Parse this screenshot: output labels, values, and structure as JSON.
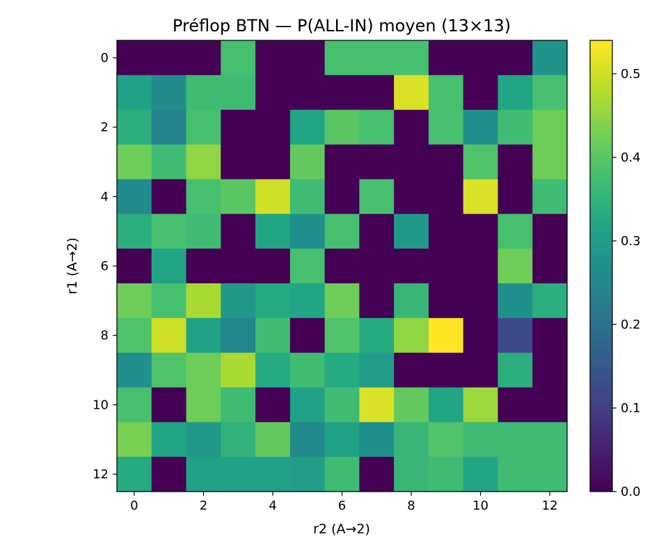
{
  "chart_data": {
    "type": "heatmap",
    "title": "Préflop BTN — P(ALL-IN) moyen (13×13)",
    "xlabel": "r2 (A→2)",
    "ylabel": "r1 (A→2)",
    "x_ticks": [
      0,
      2,
      4,
      6,
      8,
      10,
      12
    ],
    "y_ticks": [
      0,
      2,
      4,
      6,
      8,
      10,
      12
    ],
    "colorbar": {
      "min": 0.0,
      "max": 0.54,
      "ticks": [
        0.0,
        0.1,
        0.2,
        0.3,
        0.4,
        0.5
      ],
      "colormap": "viridis"
    },
    "rows": 13,
    "cols": 13,
    "values": [
      [
        0.0,
        0.0,
        0.0,
        0.38,
        0.0,
        0.0,
        0.38,
        0.38,
        0.38,
        0.0,
        0.0,
        0.0,
        0.28
      ],
      [
        0.31,
        0.26,
        0.37,
        0.37,
        0.0,
        0.0,
        0.0,
        0.0,
        0.51,
        0.38,
        0.0,
        0.32,
        0.38
      ],
      [
        0.34,
        0.24,
        0.38,
        0.0,
        0.0,
        0.32,
        0.4,
        0.38,
        0.0,
        0.38,
        0.27,
        0.37,
        0.42
      ],
      [
        0.42,
        0.37,
        0.45,
        0.0,
        0.0,
        0.41,
        0.0,
        0.0,
        0.0,
        0.0,
        0.39,
        0.0,
        0.42
      ],
      [
        0.26,
        0.0,
        0.38,
        0.4,
        0.5,
        0.37,
        0.0,
        0.38,
        0.0,
        0.0,
        0.51,
        0.0,
        0.37
      ],
      [
        0.34,
        0.38,
        0.37,
        0.0,
        0.32,
        0.27,
        0.38,
        0.0,
        0.29,
        0.0,
        0.0,
        0.38,
        0.0
      ],
      [
        0.0,
        0.32,
        0.0,
        0.0,
        0.0,
        0.38,
        0.0,
        0.0,
        0.0,
        0.0,
        0.0,
        0.42,
        0.0
      ],
      [
        0.42,
        0.38,
        0.47,
        0.29,
        0.33,
        0.32,
        0.42,
        0.0,
        0.36,
        0.0,
        0.0,
        0.27,
        0.34
      ],
      [
        0.39,
        0.5,
        0.31,
        0.25,
        0.37,
        0.0,
        0.39,
        0.33,
        0.45,
        0.54,
        0.0,
        0.12,
        0.0
      ],
      [
        0.27,
        0.39,
        0.42,
        0.47,
        0.33,
        0.37,
        0.33,
        0.3,
        0.0,
        0.0,
        0.0,
        0.34,
        0.0
      ],
      [
        0.38,
        0.0,
        0.42,
        0.37,
        0.0,
        0.31,
        0.37,
        0.51,
        0.41,
        0.32,
        0.46,
        0.0,
        0.0
      ],
      [
        0.43,
        0.32,
        0.29,
        0.35,
        0.41,
        0.26,
        0.31,
        0.27,
        0.36,
        0.39,
        0.37,
        0.37,
        0.37
      ],
      [
        0.33,
        0.0,
        0.31,
        0.31,
        0.31,
        0.3,
        0.37,
        0.0,
        0.36,
        0.37,
        0.32,
        0.37,
        0.37
      ]
    ]
  }
}
